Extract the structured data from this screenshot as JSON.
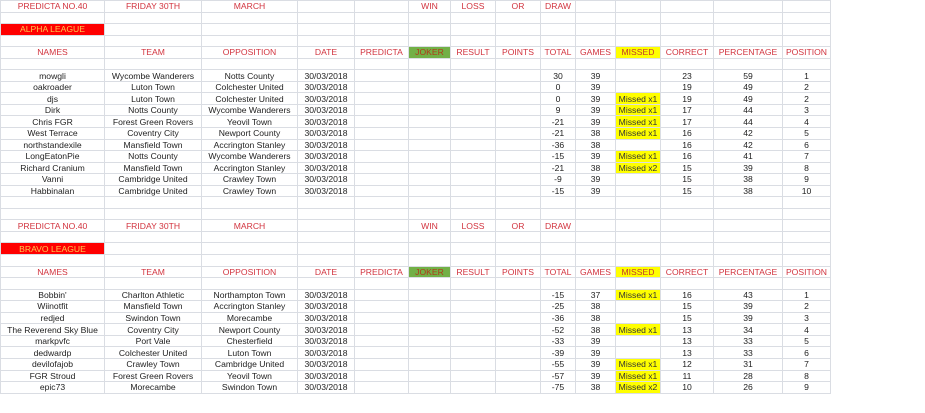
{
  "columns": [
    "NAMES",
    "TEAM",
    "OPPOSITION",
    "DATE",
    "PREDICTA",
    "JOKER",
    "RESULT",
    "POINTS",
    "TOTAL",
    "GAMES",
    "MISSED",
    "CORRECT",
    "PERCENTAGE",
    "POSITION"
  ],
  "colors": {
    "header_text": "#d2343f",
    "league_bg": "#ff0000",
    "joker_bg": "#72b046",
    "missed_bg": "#ffff00"
  },
  "title_row": {
    "predicta": "PREDICTA NO.40",
    "day": "FRIDAY 30TH",
    "month": "MARCH",
    "win": "WIN",
    "loss": "LOSS",
    "or": "OR",
    "draw": "DRAW"
  },
  "leagues": [
    {
      "name": "ALPHA LEAGUE",
      "rows": [
        [
          "mowgli",
          "Wycombe Wanderers",
          "Notts County",
          "30/03/2018",
          "30",
          "39",
          "",
          "23",
          "59",
          "1"
        ],
        [
          "oakroader",
          "Luton Town",
          "Colchester United",
          "30/03/2018",
          "0",
          "39",
          "",
          "19",
          "49",
          "2"
        ],
        [
          "djs",
          "Luton Town",
          "Colchester United",
          "30/03/2018",
          "0",
          "39",
          "Missed x1",
          "19",
          "49",
          "2"
        ],
        [
          "Dirk",
          "Notts County",
          "Wycombe Wanderers",
          "30/03/2018",
          "9",
          "39",
          "Missed x1",
          "17",
          "44",
          "3"
        ],
        [
          "Chris FGR",
          "Forest Green Rovers",
          "Yeovil Town",
          "30/03/2018",
          "-21",
          "39",
          "Missed x1",
          "17",
          "44",
          "4"
        ],
        [
          "West Terrace",
          "Coventry City",
          "Newport County",
          "30/03/2018",
          "-21",
          "38",
          "Missed x1",
          "16",
          "42",
          "5"
        ],
        [
          "northstandexile",
          "Mansfield Town",
          "Accrington Stanley",
          "30/03/2018",
          "-36",
          "38",
          "",
          "16",
          "42",
          "6"
        ],
        [
          "LongEatonPie",
          "Notts County",
          "Wycombe Wanderers",
          "30/03/2018",
          "-15",
          "39",
          "Missed x1",
          "16",
          "41",
          "7"
        ],
        [
          "Richard Cranium",
          "Mansfield Town",
          "Accrington Stanley",
          "30/03/2018",
          "-21",
          "38",
          "Missed x2",
          "15",
          "39",
          "8"
        ],
        [
          "Vanni",
          "Cambridge United",
          "Crawley Town",
          "30/03/2018",
          "-9",
          "39",
          "",
          "15",
          "38",
          "9"
        ],
        [
          "Habbinalan",
          "Cambridge United",
          "Crawley Town",
          "30/03/2018",
          "-15",
          "39",
          "",
          "15",
          "38",
          "10"
        ]
      ]
    },
    {
      "name": "BRAVO LEAGUE",
      "rows": [
        [
          "Bobbin'",
          "Charlton Athletic",
          "Northampton Town",
          "30/03/2018",
          "-15",
          "37",
          "Missed x1",
          "16",
          "43",
          "1"
        ],
        [
          "Wiinotfit",
          "Mansfield Town",
          "Accrington Stanley",
          "30/03/2018",
          "-25",
          "38",
          "",
          "15",
          "39",
          "2"
        ],
        [
          "redjed",
          "Swindon Town",
          "Morecambe",
          "30/03/2018",
          "-36",
          "38",
          "",
          "15",
          "39",
          "3"
        ],
        [
          "The Reverend Sky Blue",
          "Coventry City",
          "Newport County",
          "30/03/2018",
          "-52",
          "38",
          "Missed x1",
          "13",
          "34",
          "4"
        ],
        [
          "markpvfc",
          "Port Vale",
          "Chesterfield",
          "30/03/2018",
          "-33",
          "39",
          "",
          "13",
          "33",
          "5"
        ],
        [
          "dedwardp",
          "Colchester United",
          "Luton Town",
          "30/03/2018",
          "-39",
          "39",
          "",
          "13",
          "33",
          "6"
        ],
        [
          "devilofajob",
          "Crawley Town",
          "Cambridge United",
          "30/03/2018",
          "-55",
          "39",
          "Missed x1",
          "12",
          "31",
          "7"
        ],
        [
          "FGR Stroud",
          "Forest Green Rovers",
          "Yeovil Town",
          "30/03/2018",
          "-57",
          "39",
          "Missed x1",
          "11",
          "28",
          "8"
        ],
        [
          "epic73",
          "Morecambe",
          "Swindon Town",
          "30/03/2018",
          "-75",
          "38",
          "Missed x2",
          "10",
          "26",
          "9"
        ]
      ]
    }
  ]
}
